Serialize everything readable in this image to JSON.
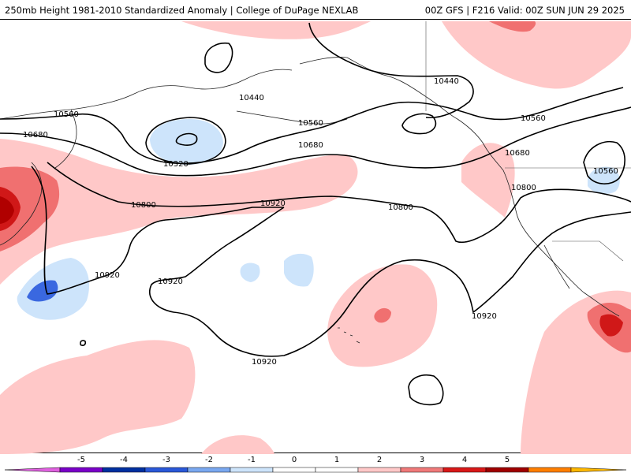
{
  "header": {
    "left_title": "250mb Height 1981-2010 Standardized Anomaly | College of DuPage NEXLAB",
    "right_title": "00Z GFS | F216 Valid: 00Z SUN JUN 29 2025"
  },
  "contours": {
    "labels": [
      "10320",
      "10440",
      "10440",
      "10560",
      "10560",
      "10560",
      "10560",
      "10680",
      "10680",
      "10680",
      "10800",
      "10800",
      "10800",
      "10920",
      "10920",
      "10920",
      "10920",
      "10920"
    ]
  },
  "colorbar": {
    "tick_labels": [
      "-5",
      "-4",
      "-3",
      "-2",
      "-1",
      "0",
      "1",
      "2",
      "3",
      "4",
      "5"
    ],
    "colors": [
      "#e060e0",
      "#7a00c8",
      "#0030a0",
      "#2a58d8",
      "#7aa8f0",
      "#cde4fb",
      "#ffffff",
      "#ffffff",
      "#ffc8c8",
      "#f07a7a",
      "#d81818",
      "#a00000",
      "#ff7f00",
      "#ffb800"
    ]
  },
  "anomaly_colors": {
    "light_red": "#ffc8c8",
    "medium_red": "#f07070",
    "dark_red": "#d01818",
    "deepest_red": "#b00000",
    "light_blue": "#cde4fb",
    "medium_blue": "#3a68e0"
  }
}
